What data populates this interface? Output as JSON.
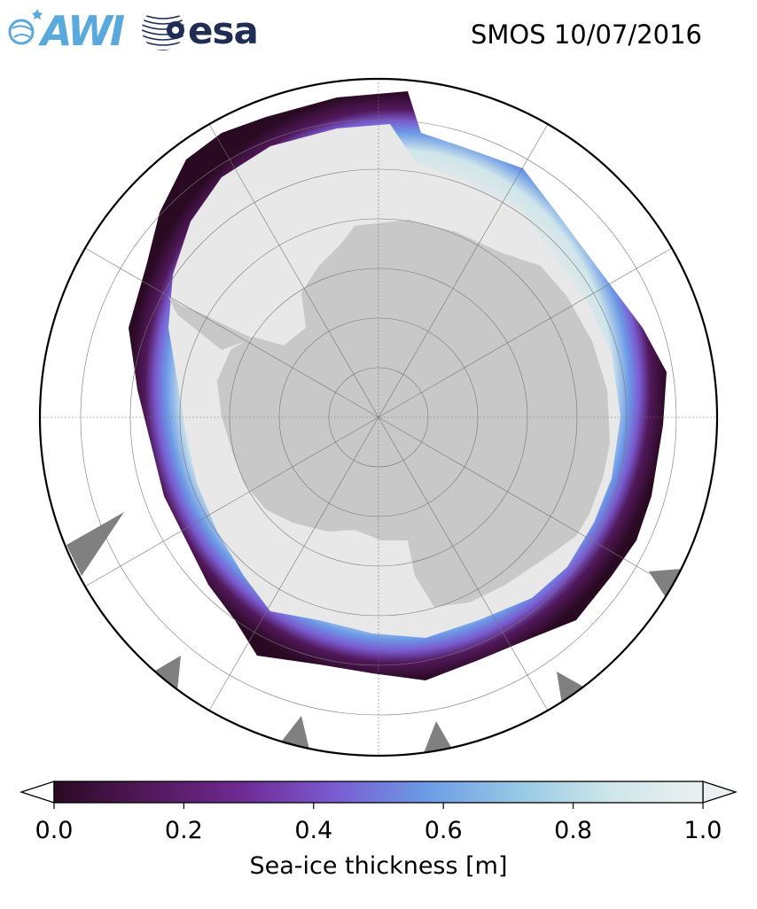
{
  "header": {
    "logo_awi": "AWI",
    "logo_esa": "esa",
    "title": "SMOS 10/07/2016"
  },
  "map": {
    "projection": "south-polar-stereographic",
    "land_color": "#c8c8c8",
    "open_water_color": "#ffffff",
    "thick_ice_color": "#e8e8e8",
    "missing_color": "#808080"
  },
  "colorbar": {
    "label": "Sea-ice thickness [m]",
    "min": 0.0,
    "max": 1.0,
    "ticks": [
      "0.0",
      "0.2",
      "0.4",
      "0.6",
      "0.8",
      "1.0"
    ],
    "colormap": [
      "#2a0a23",
      "#51185a",
      "#6e2a91",
      "#7a5ad0",
      "#6c9ae6",
      "#96c8e4",
      "#cfe6ea",
      "#eaf0f0"
    ],
    "extend": "both"
  }
}
